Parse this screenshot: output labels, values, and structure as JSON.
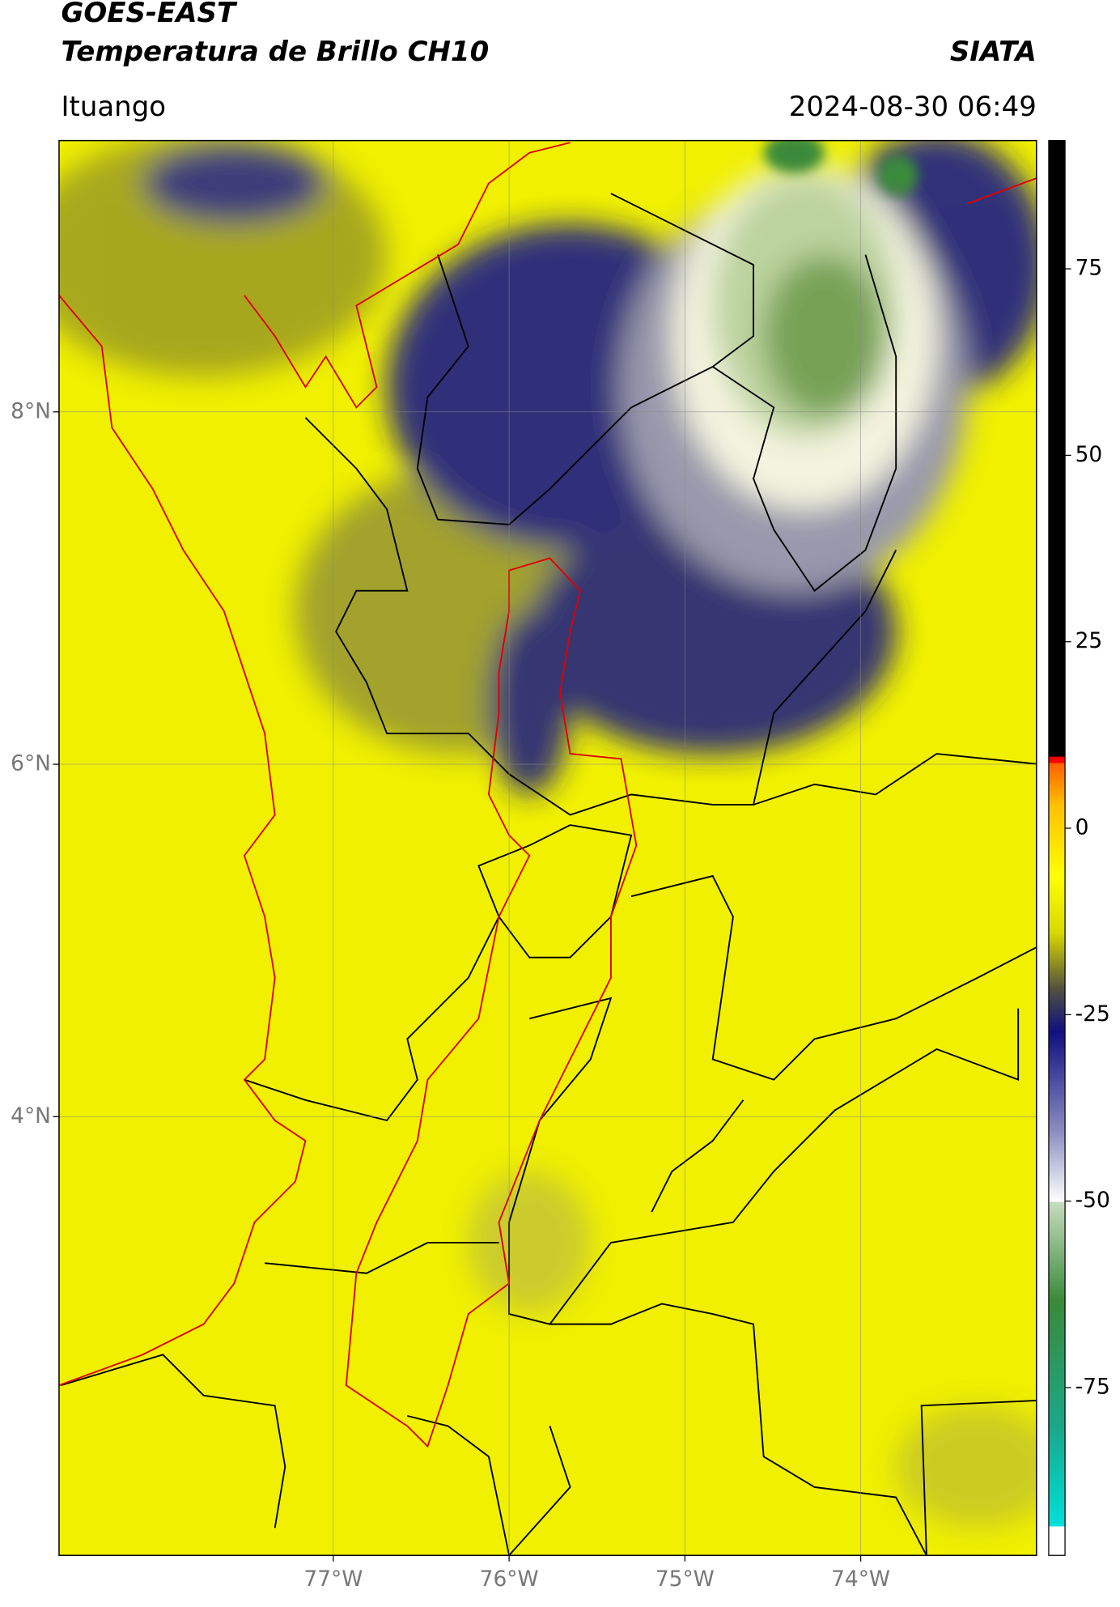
{
  "header": {
    "title": "GOES-EAST",
    "subtitle": "Temperatura de Brillo CH10",
    "organization": "SIATA",
    "location": "Ituango",
    "datetime": "2024-08-30 06:49"
  },
  "map": {
    "lonlim": [
      -78.56,
      -73.0
    ],
    "latlim": [
      1.51,
      9.54
    ],
    "lat_ticks": [
      {
        "value": 8,
        "label": "8°N"
      },
      {
        "value": 6,
        "label": "6°N"
      },
      {
        "value": 4,
        "label": "4°N"
      }
    ],
    "lon_ticks": [
      {
        "value": -77,
        "label": "77°W"
      },
      {
        "value": -76,
        "label": "76°W"
      },
      {
        "value": -75,
        "label": "75°W"
      },
      {
        "value": -74,
        "label": "74°W"
      }
    ]
  },
  "colorbar": {
    "lim": [
      -97.5,
      92.2
    ],
    "ticks": [
      75,
      50,
      25,
      0,
      -25,
      -50,
      -75
    ]
  }
}
